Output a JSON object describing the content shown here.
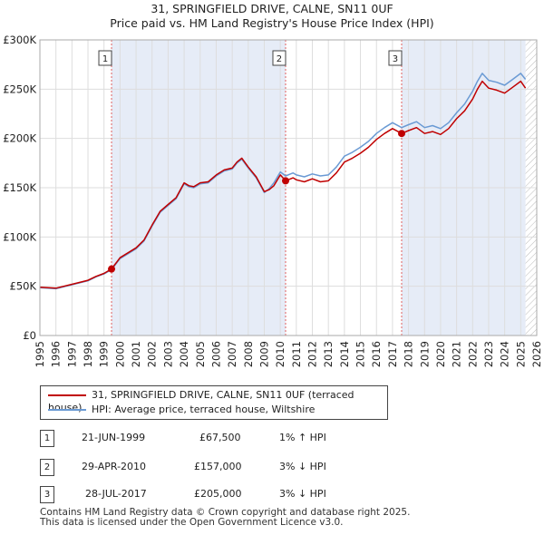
{
  "title_line1": "31, SPRINGFIELD DRIVE, CALNE, SN11 0UF",
  "title_line2": "Price paid vs. HM Land Registry's House Price Index (HPI)",
  "colors": {
    "price": "#c00000",
    "hpi": "#6a9ad4",
    "band": "#e6ecf7",
    "grid": "#dddddd"
  },
  "legend": {
    "price_label": "31, SPRINGFIELD DRIVE, CALNE, SN11 0UF (terraced house)",
    "hpi_label": "HPI: Average price, terraced house, Wiltshire"
  },
  "transactions": [
    {
      "num": "1",
      "date": "21-JUN-1999",
      "price": "£67,500",
      "hpi": "1% ↑ HPI"
    },
    {
      "num": "2",
      "date": "29-APR-2010",
      "price": "£157,000",
      "hpi": "3% ↓ HPI"
    },
    {
      "num": "3",
      "date": "28-JUL-2017",
      "price": "£205,000",
      "hpi": "3% ↓ HPI"
    }
  ],
  "footer": {
    "line1": "Contains HM Land Registry data © Crown copyright and database right 2025.",
    "line2": "This data is licensed under the Open Government Licence v3.0."
  },
  "chart_data": {
    "type": "line",
    "xlim": [
      1995,
      2026
    ],
    "ylim": [
      0,
      300000
    ],
    "y_ticks": [
      0,
      50000,
      100000,
      150000,
      200000,
      250000,
      300000
    ],
    "y_tick_labels": [
      "£0",
      "£50K",
      "£100K",
      "£150K",
      "£200K",
      "£250K",
      "£300K"
    ],
    "x_ticks": [
      1995,
      1996,
      1997,
      1998,
      1999,
      2000,
      2001,
      2002,
      2003,
      2004,
      2005,
      2006,
      2007,
      2008,
      2009,
      2010,
      2011,
      2012,
      2013,
      2014,
      2015,
      2016,
      2017,
      2018,
      2019,
      2020,
      2021,
      2022,
      2023,
      2024,
      2025,
      2026
    ],
    "x_tick_labels": [
      "1995",
      "1996",
      "1997",
      "1998",
      "1999",
      "2000",
      "2001",
      "2002",
      "2003",
      "2004",
      "2005",
      "2006",
      "2007",
      "2008",
      "2009",
      "2010",
      "2011",
      "2012",
      "2013",
      "2014",
      "2015",
      "2016",
      "2017",
      "2018",
      "2019",
      "2020",
      "2021",
      "2022",
      "2023",
      "2024",
      "2025",
      "2026"
    ],
    "ownership_bands": [
      [
        1999.47,
        2010.33
      ],
      [
        2017.57,
        2025.3
      ]
    ],
    "forecast_start": 2025.3,
    "sales": [
      {
        "label": "1",
        "x": 1999.47,
        "y": 67500
      },
      {
        "label": "2",
        "x": 2010.33,
        "y": 157000
      },
      {
        "label": "3",
        "x": 2017.57,
        "y": 205000
      }
    ],
    "series": [
      {
        "name": "31, SPRINGFIELD DRIVE, CALNE, SN11 0UF (terraced house)",
        "x": [
          1995,
          1996,
          1997,
          1998,
          1998.5,
          1999,
          1999.47,
          2000,
          2001,
          2001.5,
          2002,
          2002.5,
          2003,
          2003.5,
          2004,
          2004.3,
          2004.6,
          2005,
          2005.5,
          2006,
          2006.5,
          2007,
          2007.3,
          2007.6,
          2008,
          2008.5,
          2009,
          2009.3,
          2009.6,
          2010,
          2010.33,
          2010.8,
          2011,
          2011.5,
          2012,
          2012.5,
          2013,
          2013.5,
          2014,
          2014.5,
          2015,
          2015.5,
          2016,
          2016.5,
          2017,
          2017.57,
          2018,
          2018.5,
          2019,
          2019.5,
          2020,
          2020.5,
          2021,
          2021.5,
          2022,
          2022.3,
          2022.6,
          2023,
          2023.5,
          2024,
          2024.5,
          2025,
          2025.3
        ],
        "y": [
          49000,
          48000,
          52000,
          56000,
          60000,
          63000,
          67500,
          79000,
          89000,
          97000,
          112000,
          126000,
          133000,
          140000,
          155000,
          152000,
          151000,
          155000,
          156000,
          163000,
          168000,
          170000,
          176000,
          180000,
          171000,
          161000,
          146000,
          148000,
          152000,
          163000,
          157000,
          160000,
          158000,
          156000,
          159000,
          156000,
          157000,
          165000,
          176000,
          180000,
          185000,
          191000,
          199000,
          205000,
          210000,
          205000,
          208000,
          211000,
          205000,
          207000,
          204000,
          210000,
          220000,
          228000,
          240000,
          250000,
          258000,
          251000,
          249000,
          246000,
          252000,
          258000,
          251000
        ]
      },
      {
        "name": "HPI: Average price, terraced house, Wiltshire",
        "x": [
          1995,
          1996,
          1997,
          1998,
          1998.5,
          1999,
          1999.47,
          2000,
          2001,
          2001.5,
          2002,
          2002.5,
          2003,
          2003.5,
          2004,
          2004.3,
          2004.6,
          2005,
          2005.5,
          2006,
          2006.5,
          2007,
          2007.3,
          2007.6,
          2008,
          2008.5,
          2009,
          2009.3,
          2009.6,
          2010,
          2010.33,
          2010.8,
          2011,
          2011.5,
          2012,
          2012.5,
          2013,
          2013.5,
          2014,
          2014.5,
          2015,
          2015.5,
          2016,
          2016.5,
          2017,
          2017.57,
          2018,
          2018.5,
          2019,
          2019.5,
          2020,
          2020.5,
          2021,
          2021.5,
          2022,
          2022.3,
          2022.6,
          2023,
          2023.5,
          2024,
          2024.5,
          2025,
          2025.3
        ],
        "y": [
          48500,
          47500,
          51500,
          55500,
          59500,
          62500,
          66800,
          78000,
          88000,
          96000,
          111000,
          125000,
          132000,
          139000,
          154000,
          151000,
          150000,
          154000,
          155000,
          162000,
          167000,
          169000,
          175000,
          179000,
          170000,
          160000,
          145000,
          149000,
          155000,
          166000,
          162000,
          165000,
          163000,
          161000,
          164000,
          162000,
          163000,
          171000,
          182000,
          186000,
          191000,
          197000,
          205000,
          211000,
          216000,
          211000,
          214000,
          217000,
          211000,
          213000,
          210000,
          216000,
          226000,
          235000,
          248000,
          258000,
          266000,
          259000,
          257000,
          254000,
          260000,
          266000,
          260000
        ]
      }
    ]
  }
}
